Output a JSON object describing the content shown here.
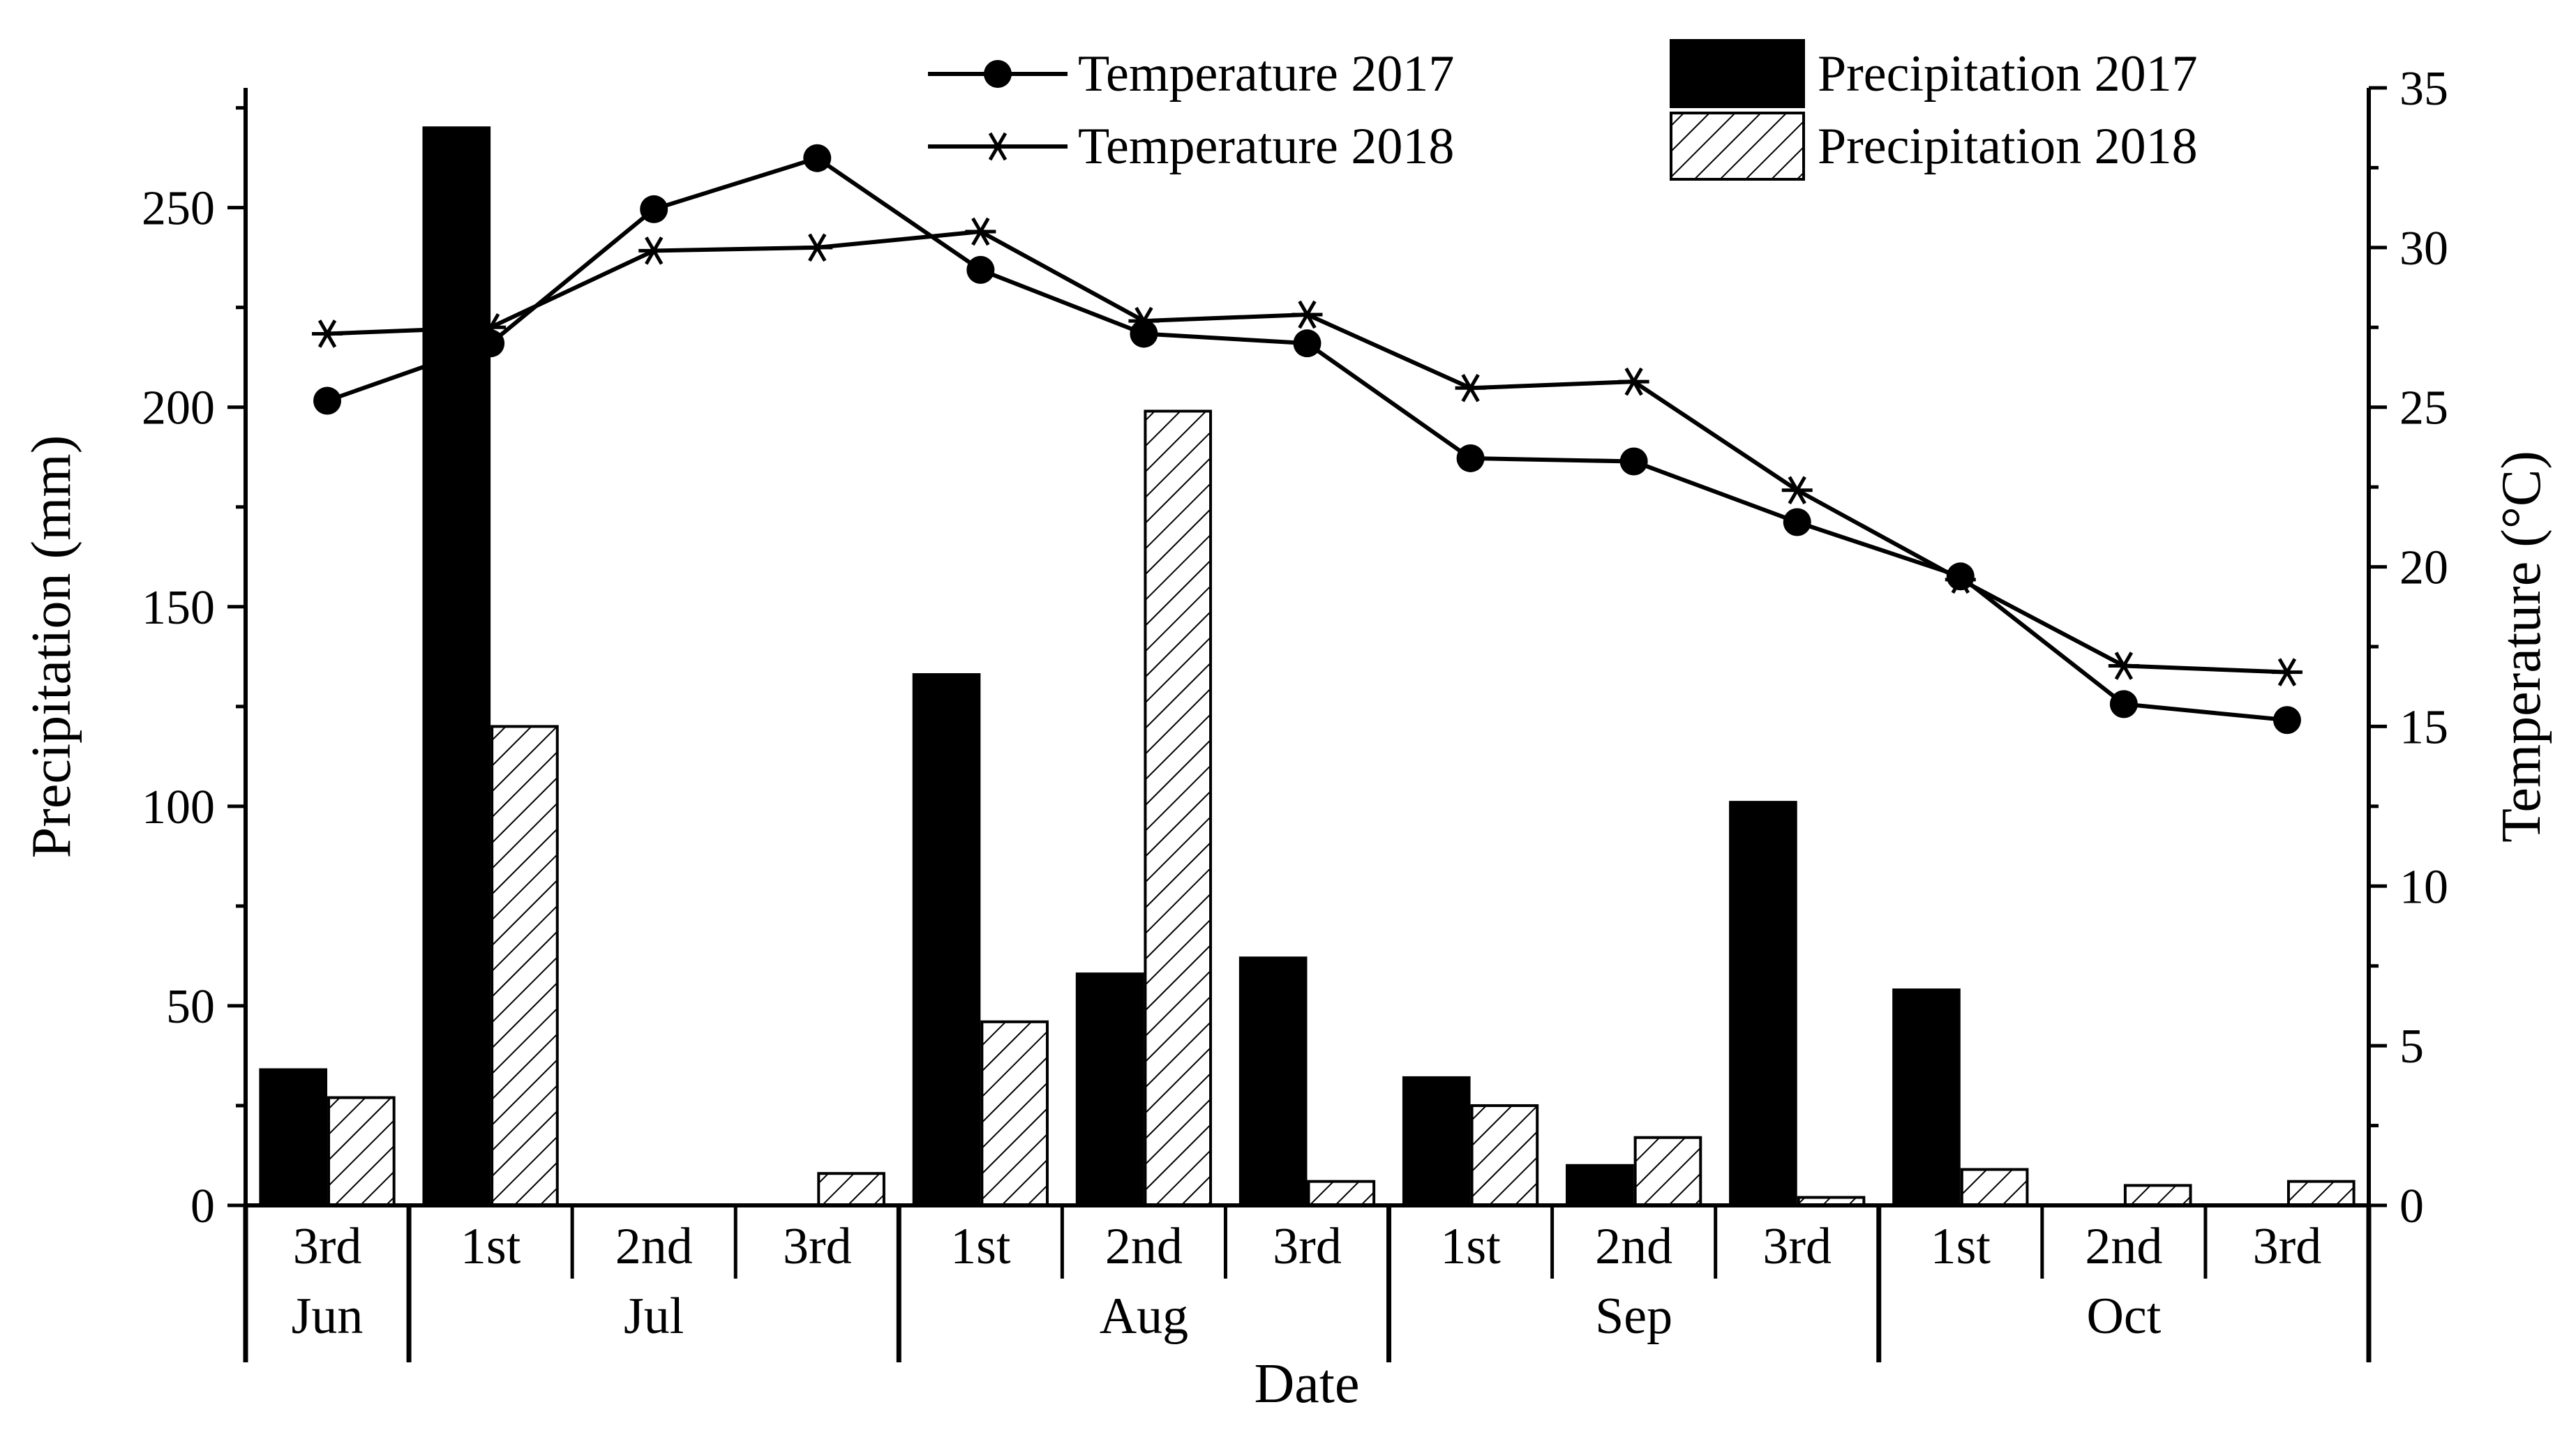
{
  "chart_data": {
    "type": "bar",
    "xlabel": "Date",
    "ylabel": "Precipitation (mm)",
    "y2label": "Temperature (°C)",
    "ylim": [
      0,
      280
    ],
    "y2lim": [
      0,
      35
    ],
    "yticks": [
      "0",
      "50",
      "100",
      "150",
      "200",
      "250"
    ],
    "y2ticks": [
      "0",
      "5",
      "10",
      "15",
      "20",
      "25",
      "30",
      "35"
    ],
    "categories": [
      "3rd",
      "1st",
      "2nd",
      "3rd",
      "1st",
      "2nd",
      "3rd",
      "1st",
      "2nd",
      "3rd",
      "1st",
      "2nd",
      "3rd"
    ],
    "month_groups": [
      {
        "label": "Jun",
        "start": 0,
        "count": 1
      },
      {
        "label": "Jul",
        "start": 1,
        "count": 3
      },
      {
        "label": "Aug",
        "start": 4,
        "count": 3
      },
      {
        "label": "Sep",
        "start": 7,
        "count": 3
      },
      {
        "label": "Oct",
        "start": 10,
        "count": 3
      }
    ],
    "bar_series": [
      {
        "name": "Precipitation 2017",
        "fill": "#000000",
        "values": [
          34,
          270,
          0,
          0,
          133,
          58,
          62,
          32,
          10,
          101,
          54,
          0,
          0
        ]
      },
      {
        "name": "Precipitation 2018",
        "fill": "hatch",
        "values": [
          27,
          120,
          0,
          8,
          46,
          199,
          6,
          25,
          17,
          2,
          9,
          5,
          6
        ]
      }
    ],
    "line_series": [
      {
        "name": "Temperature 2017",
        "marker": "circle",
        "axis": "right",
        "values": [
          25.2,
          27.0,
          31.2,
          32.8,
          29.3,
          27.3,
          27.0,
          23.4,
          23.3,
          21.4,
          19.7,
          15.7,
          15.2
        ]
      },
      {
        "name": "Temperature 2018",
        "marker": "asterisk",
        "axis": "right",
        "values": [
          27.3,
          27.5,
          29.9,
          30.0,
          30.5,
          27.7,
          27.9,
          25.6,
          25.8,
          22.4,
          19.6,
          16.9,
          16.7
        ]
      }
    ],
    "legend": "top"
  }
}
